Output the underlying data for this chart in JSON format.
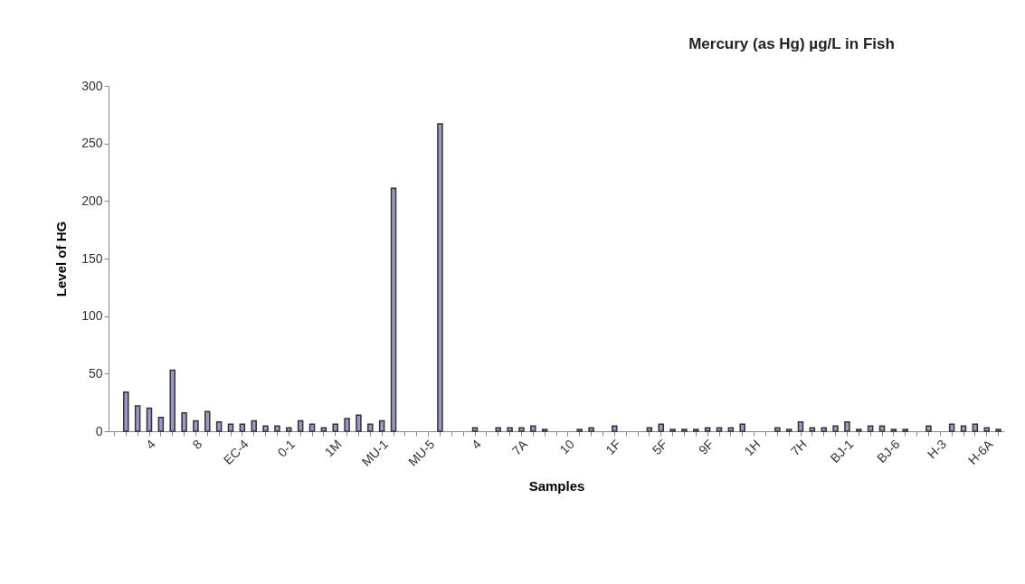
{
  "chart_data": {
    "type": "bar",
    "title": "Mercury (as Hg) µg/L in Fish",
    "xlabel": "Samples",
    "ylabel": "Level of HG",
    "categories": [
      null,
      null,
      null,
      "4",
      null,
      null,
      null,
      "8",
      null,
      null,
      null,
      "EC-4",
      null,
      null,
      null,
      "0-1",
      null,
      null,
      null,
      "1M",
      null,
      null,
      null,
      "MU-1",
      null,
      null,
      null,
      "MU-5",
      null,
      null,
      null,
      "4",
      null,
      null,
      null,
      "7A",
      null,
      null,
      null,
      "10",
      null,
      null,
      null,
      "1F",
      null,
      null,
      null,
      "5F",
      null,
      null,
      null,
      "9F",
      null,
      null,
      null,
      "1H",
      null,
      null,
      null,
      "7H",
      null,
      null,
      null,
      "BJ-1",
      null,
      null,
      null,
      "BJ-6",
      null,
      null,
      null,
      "H-3",
      null,
      null,
      null,
      "H-6A",
      null
    ],
    "values": [
      null,
      34,
      22,
      20,
      12,
      53,
      16,
      9,
      17,
      8,
      6,
      6,
      9,
      4.5,
      4.5,
      3,
      9,
      6,
      3,
      6,
      11,
      14,
      6,
      9,
      211,
      null,
      null,
      null,
      267,
      null,
      null,
      3,
      null,
      3,
      3,
      3,
      4.5,
      1.5,
      null,
      null,
      1.5,
      3,
      null,
      4.5,
      null,
      null,
      3,
      6,
      1.5,
      1.5,
      1.5,
      3,
      3,
      3,
      6,
      null,
      null,
      3,
      1.5,
      8,
      3,
      3,
      4.5,
      8,
      1.5,
      4.5,
      4.5,
      1.5,
      1.5,
      null,
      4.5,
      null,
      6,
      4.5,
      6,
      3,
      1.5
    ],
    "color": "#9999cc",
    "ylim": [
      0,
      300
    ],
    "yticks": [
      0,
      50,
      100,
      150,
      200,
      250,
      300
    ],
    "grid": false
  }
}
